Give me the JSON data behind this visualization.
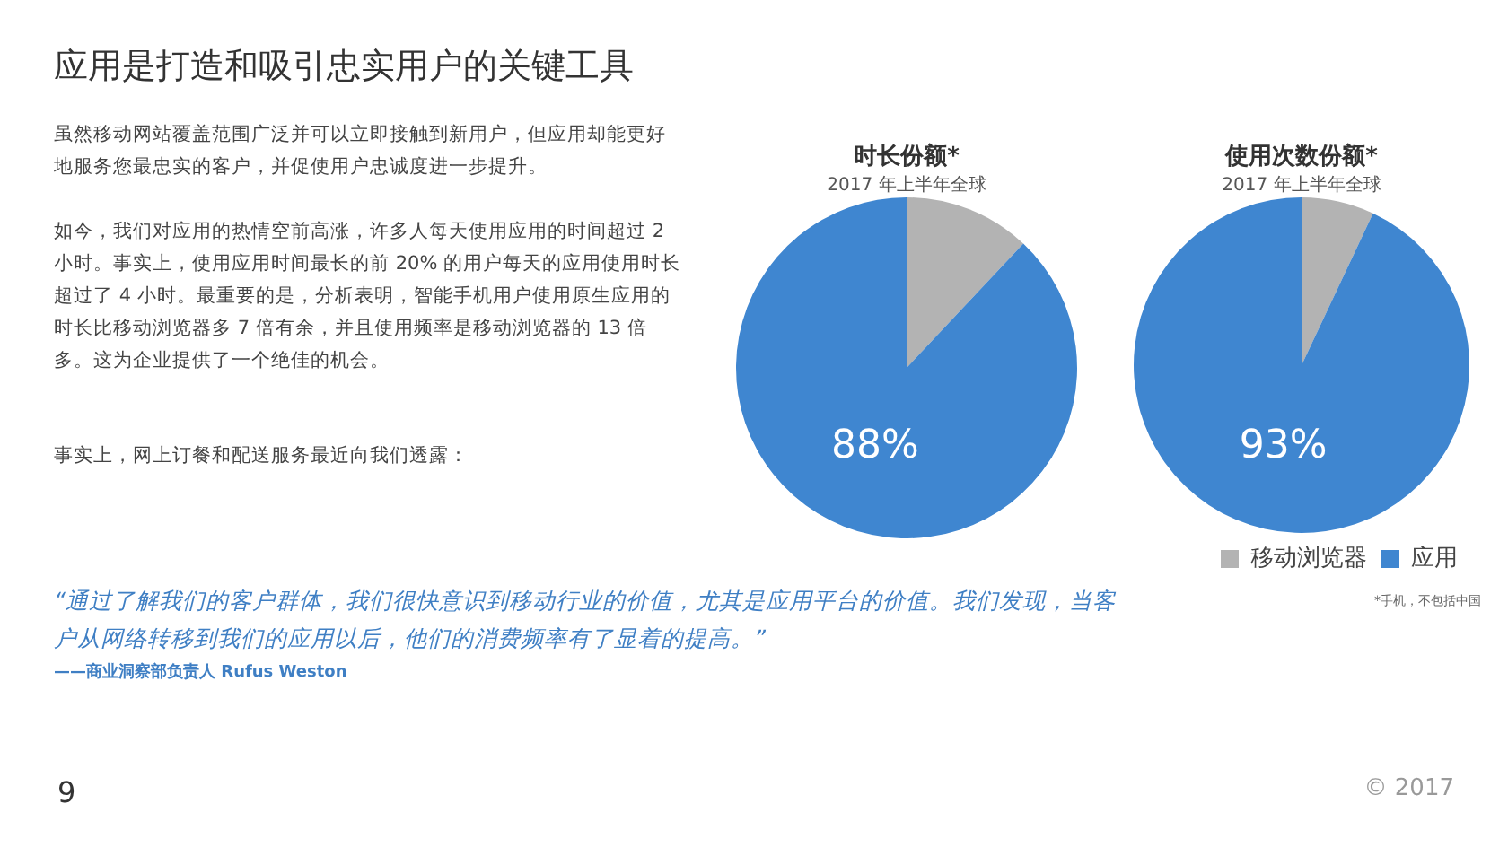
{
  "chart_data": [
    {
      "type": "other",
      "title": "应用是打造和吸引忠实用户的关键工具",
      "annotations": [
        "虽然移动网站覆盖范围广泛并可以立即接触到新用户，但应用却能更好地服务您最忠实的客户，并促使用户忠诚度进一步提升。",
        "如今，我们对应用的热情空前高涨，许多人每天使用应用的时间超过 2 小时。事实上，使用应用时间最长的前 20% 的用户每天的应用使用时长超过了 4 小时。最重要的是，分析表明，智能手机用户使用原生应用的时长比移动浏览器多 7 倍有余，并且使用频率是移动浏览器的 13 倍多。这为企业提供了一个绝佳的机会。",
        "事实上，网上订餐和配送服务最近向我们透露：",
        "“通过了解我们的客户群体，我们很快意识到移动行业的价值，尤其是应用平台的价值。我们发现，当客户从网络转移到我们的应用以后，他们的消费频率有了显着的提高。”",
        "——商业洞察部负责人 Rufus Weston",
        "9",
        "© 2017"
      ]
    },
    {
      "type": "pie",
      "title": "时长份额*",
      "subtitle": "2017 年上半年全球",
      "categories": [
        null,
        null
      ],
      "values": [
        12,
        88
      ],
      "colors": [
        "#b3b3b3",
        "#3f86d0"
      ],
      "value_labels": [
        null,
        "88%"
      ],
      "legend": false
    },
    {
      "type": "pie",
      "title": "使用次数份额*",
      "subtitle": "2017 年上半年全球",
      "categories": [
        "移动浏览器",
        "应用"
      ],
      "values": [
        7,
        93
      ],
      "colors": [
        "#b3b3b3",
        "#3f86d0"
      ],
      "value_labels": [
        null,
        "93%"
      ],
      "legend": "bottom",
      "annotations": [
        "*手机，不包括中国"
      ]
    }
  ]
}
